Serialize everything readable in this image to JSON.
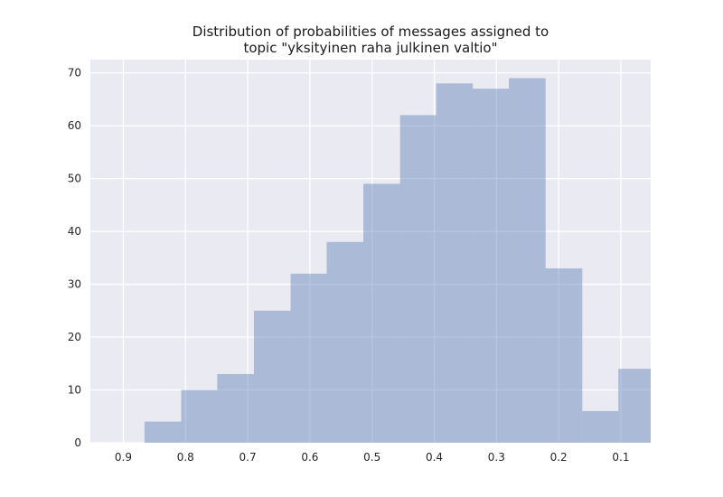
{
  "chart_data": {
    "type": "bar",
    "title_lines": [
      "Distribution of probabilities of messages assigned to",
      "topic \"yksityinen raha julkinen valtio\""
    ],
    "xlabel": "",
    "ylabel": "",
    "x_inverted": true,
    "xlim": [
      0.953,
      0.052
    ],
    "ylim": [
      0,
      72.5
    ],
    "x_ticks": [
      0.9,
      0.8,
      0.7,
      0.6,
      0.5,
      0.4,
      0.3,
      0.2,
      0.1
    ],
    "x_tick_labels": [
      "0.9",
      "0.8",
      "0.7",
      "0.6",
      "0.5",
      "0.4",
      "0.3",
      "0.2",
      "0.1"
    ],
    "y_ticks": [
      0,
      10,
      20,
      30,
      40,
      50,
      60,
      70
    ],
    "y_tick_labels": [
      "0",
      "10",
      "20",
      "30",
      "40",
      "50",
      "60",
      "70"
    ],
    "bin_edges": [
      0.866,
      0.807,
      0.749,
      0.69,
      0.631,
      0.573,
      0.514,
      0.455,
      0.397,
      0.338,
      0.28,
      0.221,
      0.162,
      0.104,
      0.052
    ],
    "values": [
      4,
      10,
      13,
      25,
      32,
      38,
      49,
      62,
      68,
      67,
      69,
      33,
      6,
      14
    ],
    "grid": true,
    "colors": {
      "background": "#eaeaf2",
      "grid": "#ffffff",
      "bar": "#4c72b0",
      "bar_opacity": 0.4
    }
  }
}
